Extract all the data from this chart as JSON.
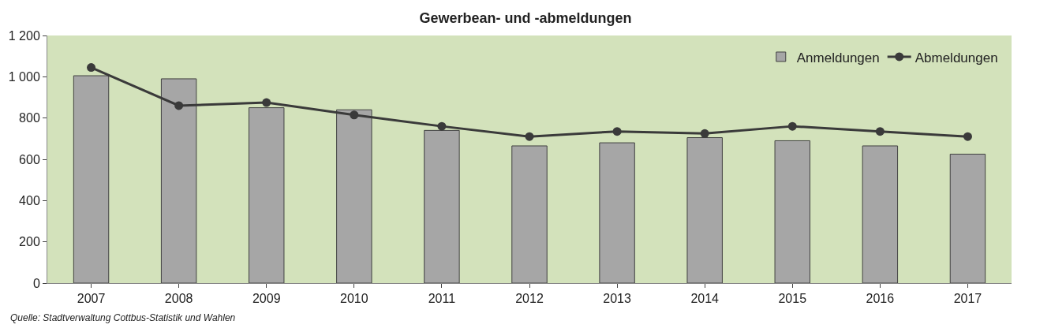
{
  "chart_data": {
    "type": "bar",
    "title": "Gewerbean- und -abmeldungen",
    "categories": [
      "2007",
      "2008",
      "2009",
      "2010",
      "2011",
      "2012",
      "2013",
      "2014",
      "2015",
      "2016",
      "2017"
    ],
    "series": [
      {
        "name": "Anmeldungen",
        "color": "#a6a6a6",
        "values": [
          1005,
          990,
          850,
          840,
          740,
          665,
          680,
          705,
          690,
          665,
          625
        ]
      },
      {
        "name": "Abmeldungen",
        "type": "line",
        "color": "#3a3a3a",
        "marker": "circle",
        "values": [
          1045,
          860,
          875,
          815,
          760,
          710,
          735,
          725,
          760,
          735,
          710
        ]
      }
    ],
    "ylim": [
      0,
      1200
    ],
    "yticks": [
      0,
      {
        "value": 200,
        "label": "200"
      },
      {
        "value": 400,
        "label": "400"
      },
      {
        "value": 600,
        "label": "600"
      },
      {
        "value": 800,
        "label": "800"
      },
      {
        "value": 1000,
        "label": "1 000"
      },
      {
        "value": 1200,
        "label": "1 200"
      }
    ],
    "grid": false,
    "legend": "top right",
    "annotations": [
      "Quelle: Stadtverwaltung Cottbus-Statistik und Wahlen"
    ]
  }
}
